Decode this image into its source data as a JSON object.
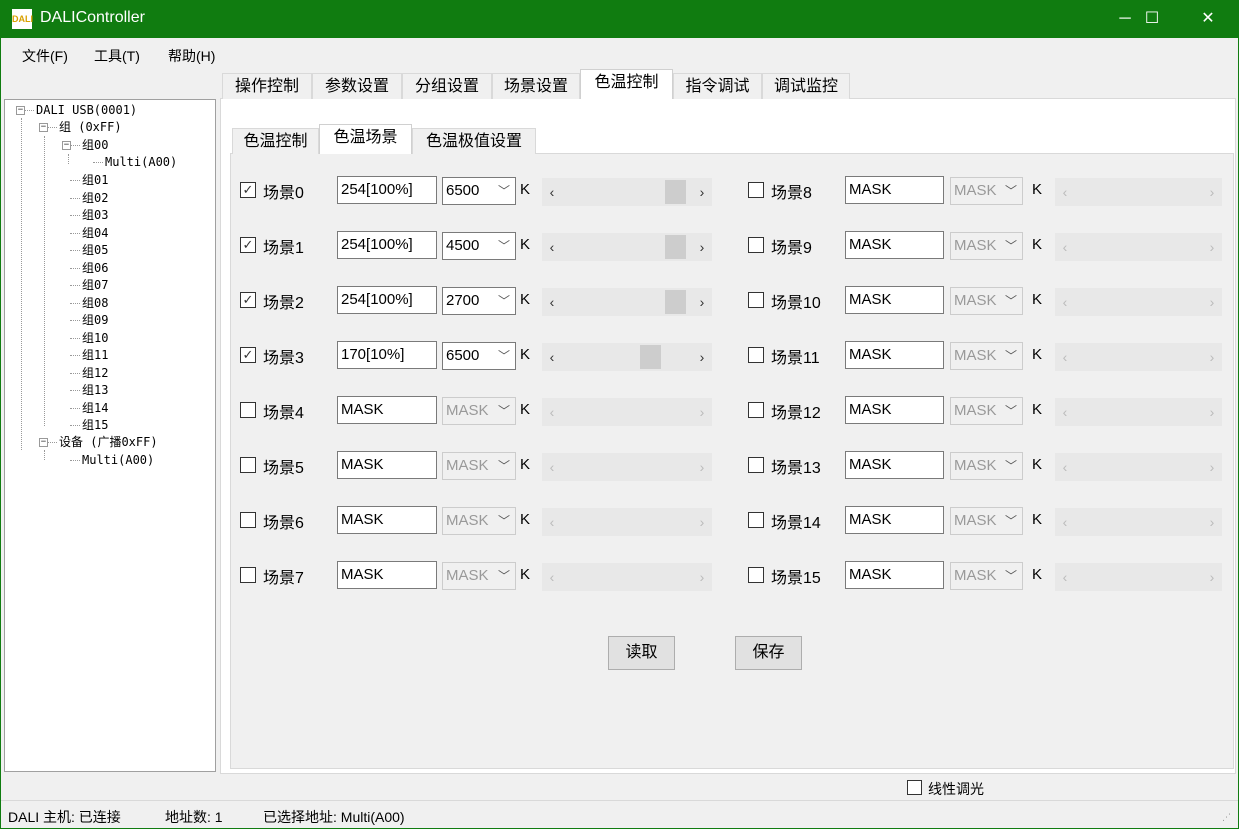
{
  "window": {
    "title": "DALIController",
    "icon_text": "DALI",
    "minimize": "─",
    "maximize": "☐",
    "close": "✕"
  },
  "menu": [
    "文件(F)",
    "工具(T)",
    "帮助(H)"
  ],
  "tree": {
    "root": "DALI USB(0001)",
    "group_all": "组 (0xFF)",
    "group00": "组00",
    "group00_device": "Multi(A00)",
    "groups": [
      "组01",
      "组02",
      "组03",
      "组04",
      "组05",
      "组06",
      "组07",
      "组08",
      "组09",
      "组10",
      "组11",
      "组12",
      "组13",
      "组14",
      "组15"
    ],
    "devices": "设备 (广播0xFF)",
    "device": "Multi(A00)"
  },
  "tabs": [
    "操作控制",
    "参数设置",
    "分组设置",
    "场景设置",
    "色温控制",
    "指令调试",
    "调试监控"
  ],
  "active_tab": 4,
  "subtabs": [
    "色温控制",
    "色温场景",
    "色温极值设置"
  ],
  "active_subtab": 1,
  "unit": "K",
  "scenes": [
    {
      "label": "场景0",
      "checked": true,
      "level": "254[100%]",
      "cct": "6500",
      "slider": 1.0
    },
    {
      "label": "场景1",
      "checked": true,
      "level": "254[100%]",
      "cct": "4500",
      "slider": 1.0
    },
    {
      "label": "场景2",
      "checked": true,
      "level": "254[100%]",
      "cct": "2700",
      "slider": 1.0
    },
    {
      "label": "场景3",
      "checked": true,
      "level": "170[10%]",
      "cct": "6500",
      "slider": 0.77
    },
    {
      "label": "场景4",
      "checked": false,
      "level": "MASK",
      "cct": "MASK"
    },
    {
      "label": "场景5",
      "checked": false,
      "level": "MASK",
      "cct": "MASK"
    },
    {
      "label": "场景6",
      "checked": false,
      "level": "MASK",
      "cct": "MASK"
    },
    {
      "label": "场景7",
      "checked": false,
      "level": "MASK",
      "cct": "MASK"
    },
    {
      "label": "场景8",
      "checked": false,
      "level": "MASK",
      "cct": "MASK"
    },
    {
      "label": "场景9",
      "checked": false,
      "level": "MASK",
      "cct": "MASK"
    },
    {
      "label": "场景10",
      "checked": false,
      "level": "MASK",
      "cct": "MASK"
    },
    {
      "label": "场景11",
      "checked": false,
      "level": "MASK",
      "cct": "MASK"
    },
    {
      "label": "场景12",
      "checked": false,
      "level": "MASK",
      "cct": "MASK"
    },
    {
      "label": "场景13",
      "checked": false,
      "level": "MASK",
      "cct": "MASK"
    },
    {
      "label": "场景14",
      "checked": false,
      "level": "MASK",
      "cct": "MASK"
    },
    {
      "label": "场景15",
      "checked": false,
      "level": "MASK",
      "cct": "MASK"
    }
  ],
  "buttons": {
    "read": "读取",
    "save": "保存"
  },
  "linear_dimming": {
    "label": "线性调光",
    "checked": false
  },
  "status": {
    "host": "DALI 主机: 已连接",
    "count": "地址数: 1",
    "selected": "已选择地址: Multi(A00)"
  },
  "colors": {
    "titlebar": "#107c10"
  }
}
